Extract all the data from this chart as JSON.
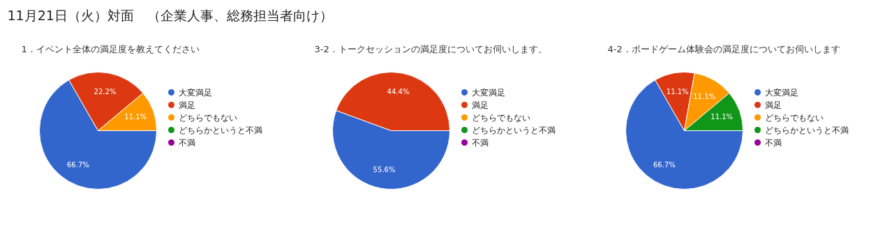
{
  "chart_data": [
    {
      "type": "other",
      "title": "11月21日（火）対面　（企業人事、総務担当者向け）"
    },
    {
      "type": "pie",
      "title": "1．イベント全体の満足度を教えてください",
      "categories": [
        "大変満足",
        "満足",
        "どちらでもない",
        "どちらかというと不満",
        "不満"
      ],
      "values": [
        66.7,
        22.2,
        11.1,
        0,
        0
      ],
      "colors": [
        "#3366cc",
        "#dc3912",
        "#ff9900",
        "#109618",
        "#990099"
      ],
      "value_labels": [
        "66.7%",
        "22.2%",
        "11.1%",
        null,
        null
      ],
      "legend": "right"
    },
    {
      "type": "pie",
      "title": "3-2．トークセッションの満足度についてお伺いします。",
      "categories": [
        "大変満足",
        "満足",
        "どちらでもない",
        "どちらかというと不満",
        "不満"
      ],
      "values": [
        55.6,
        44.4,
        0,
        0,
        0
      ],
      "colors": [
        "#3366cc",
        "#dc3912",
        "#ff9900",
        "#109618",
        "#990099"
      ],
      "value_labels": [
        "55.6%",
        "44.4%",
        null,
        null,
        null
      ],
      "legend": "right"
    },
    {
      "type": "pie",
      "title": "4-2．ボードゲーム体験会の満足度についてお伺いします",
      "categories": [
        "大変満足",
        "満足",
        "どちらでもない",
        "どちらかというと不満",
        "不満"
      ],
      "values": [
        66.7,
        11.1,
        11.1,
        11.1,
        0
      ],
      "colors": [
        "#3366cc",
        "#dc3912",
        "#ff9900",
        "#109618",
        "#990099"
      ],
      "value_labels": [
        "66.7%",
        "11.1%",
        "11.1%",
        "11.1%",
        null
      ],
      "legend": "right"
    }
  ]
}
